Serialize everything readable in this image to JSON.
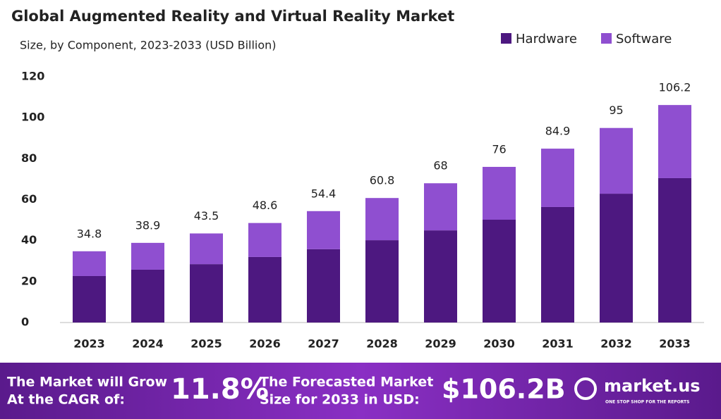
{
  "chart_data": {
    "type": "stacked_bar",
    "title": "Global Augmented Reality and Virtual Reality Market",
    "subtitle": "Size, by Component, 2023-2033 (USD Billion)",
    "categories": [
      "2023",
      "2024",
      "2025",
      "2026",
      "2027",
      "2028",
      "2029",
      "2030",
      "2031",
      "2032",
      "2033"
    ],
    "series": [
      {
        "name": "Hardware",
        "color": "#4d1880",
        "values": [
          22.7,
          25.8,
          28.5,
          32.0,
          35.8,
          40.2,
          45.0,
          50.2,
          56.4,
          62.9,
          70.5
        ]
      },
      {
        "name": "Software",
        "color": "#8f4fd0",
        "values": [
          12.1,
          13.1,
          15.0,
          16.6,
          18.6,
          20.6,
          23.0,
          25.8,
          28.5,
          32.1,
          35.7
        ]
      }
    ],
    "totals": [
      34.8,
      38.9,
      43.5,
      48.6,
      54.4,
      60.8,
      68.0,
      76.0,
      84.9,
      95.0,
      106.2
    ],
    "ylim": [
      0,
      120
    ],
    "yticks": [
      0,
      20,
      40,
      60,
      80,
      100,
      120
    ],
    "grid": false,
    "legend": "top-right"
  },
  "footer": {
    "cagr_text": [
      "The Market will Grow",
      "At the CAGR of:"
    ],
    "cagr_value": "11.8%",
    "forecast_text": [
      "The Forecasted Market",
      "Size for 2033 in USD:"
    ],
    "forecast_value": "$106.2B",
    "brand": "market.us",
    "tagline": "ONE STOP SHOP FOR THE REPORTS"
  }
}
